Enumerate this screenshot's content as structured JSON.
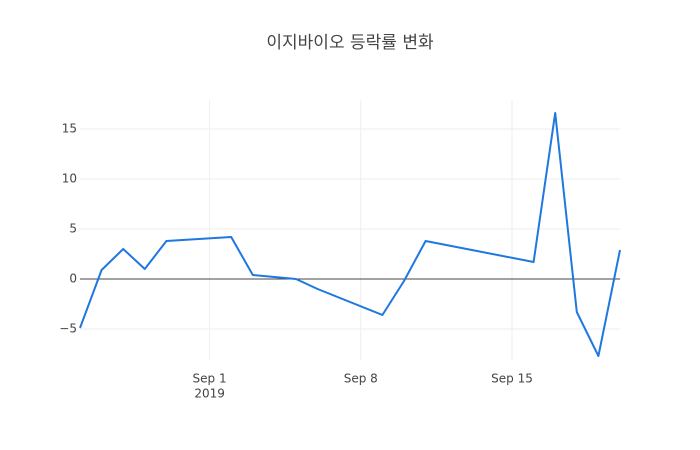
{
  "chart_data": {
    "type": "line",
    "title": "이지바이오 등락률 변화",
    "x": [
      "2019-08-26",
      "2019-08-27",
      "2019-08-28",
      "2019-08-29",
      "2019-08-30",
      "2019-09-02",
      "2019-09-03",
      "2019-09-04",
      "2019-09-05",
      "2019-09-06",
      "2019-09-09",
      "2019-09-10",
      "2019-09-11",
      "2019-09-16",
      "2019-09-17",
      "2019-09-18",
      "2019-09-19",
      "2019-09-20"
    ],
    "series": [
      {
        "color": "#1f77e0",
        "values": [
          -4.9,
          0.9,
          3.0,
          1.0,
          3.8,
          4.2,
          0.4,
          0.2,
          0.0,
          -1.0,
          -3.6,
          -0.2,
          3.8,
          1.7,
          16.6,
          -3.3,
          -7.7,
          2.9
        ]
      }
    ],
    "xlim": [
      "2019-08-26",
      "2019-09-20"
    ],
    "xticks": [
      {
        "value": "2019-09-01",
        "label": [
          "Sep 1",
          "2019"
        ]
      },
      {
        "value": "2019-09-08",
        "label": [
          "Sep 8"
        ]
      },
      {
        "value": "2019-09-15",
        "label": [
          "Sep 15"
        ]
      }
    ],
    "ylim": [
      -8.1,
      17.9
    ],
    "yticks": [
      {
        "value": -5,
        "label": "−5"
      },
      0,
      5,
      10,
      15
    ],
    "grid": true
  }
}
